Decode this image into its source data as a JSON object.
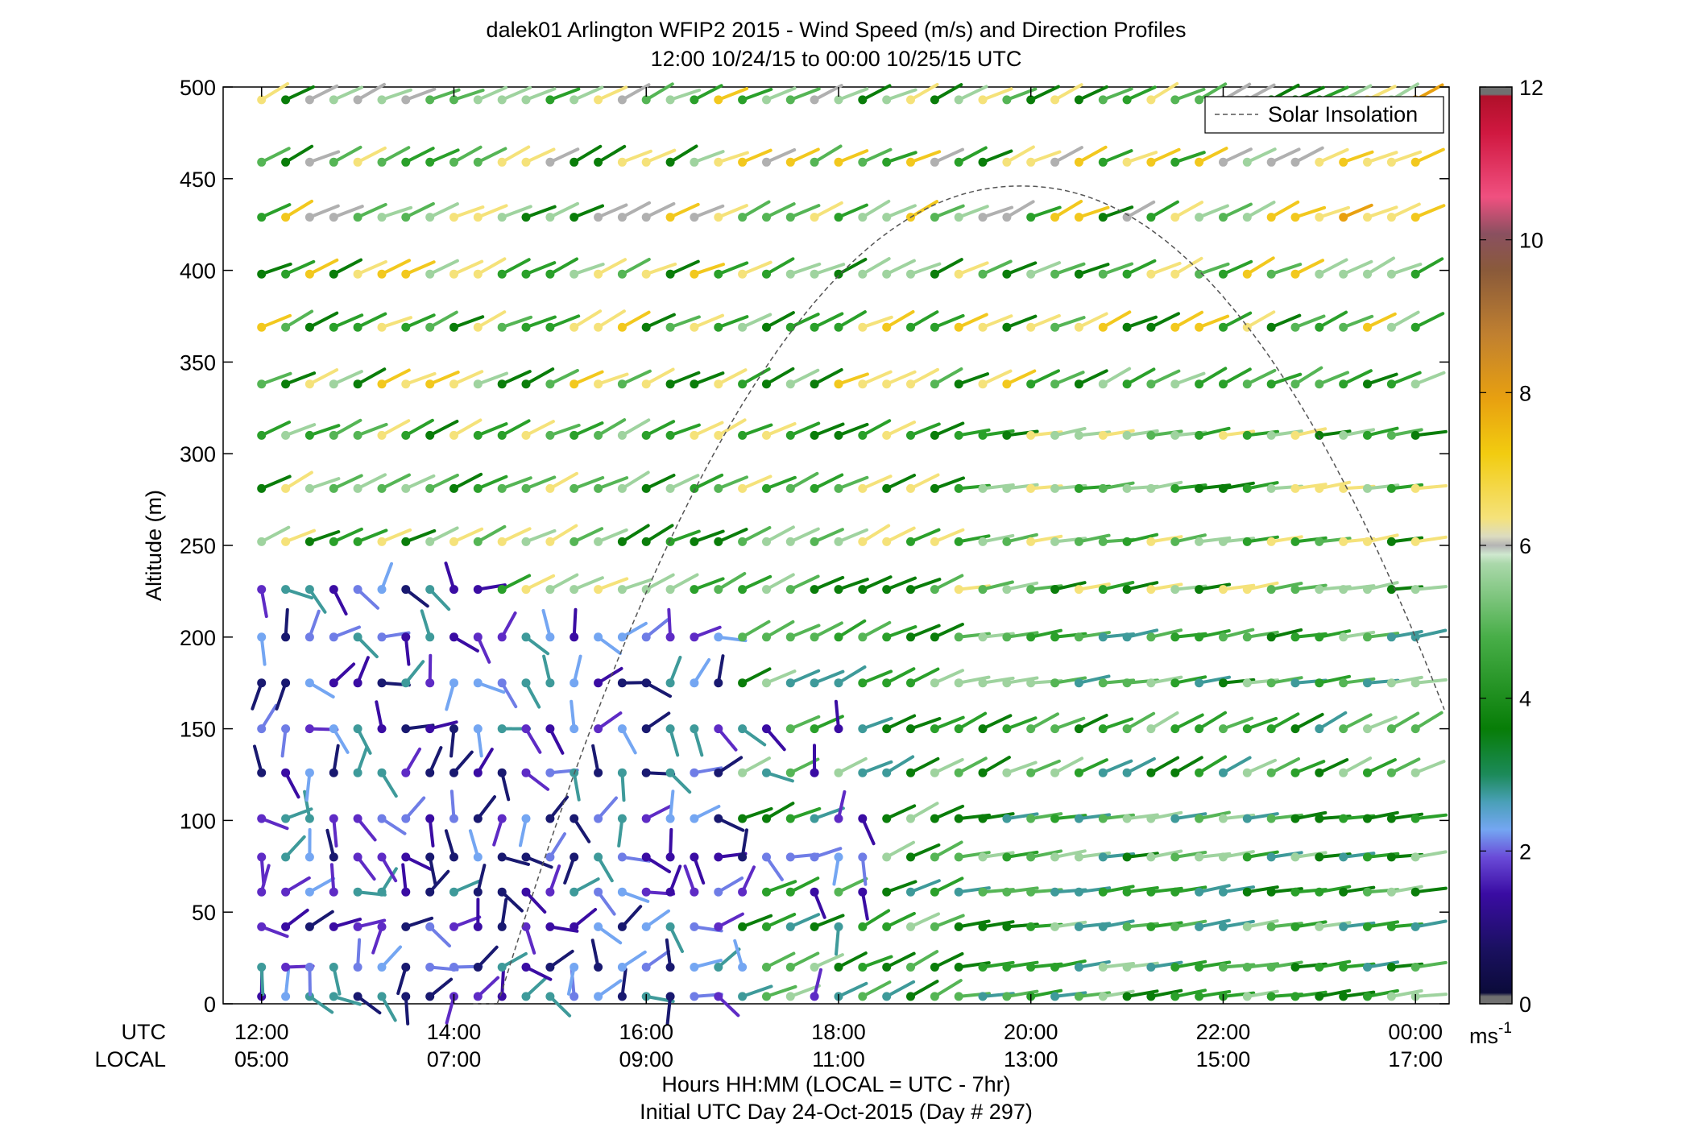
{
  "chart_data": {
    "type": "wind-barb-profile",
    "title": "dalek01 Arlington WFIP2 2015 - Wind Speed (m/s) and Direction Profiles",
    "subtitle": "12:00 10/24/15 to 00:00 10/25/15  UTC",
    "ylabel": "Altitude (m)",
    "xlabel": "Hours HH:MM  (LOCAL = UTC - 7hr)",
    "xlabel2": "Initial UTC Day 24-Oct-2015 (Day # 297)",
    "utc_row_label": "UTC",
    "local_row_label": "LOCAL",
    "x_ticks_utc": [
      "12:00",
      "14:00",
      "16:00",
      "18:00",
      "20:00",
      "22:00",
      "00:00"
    ],
    "x_ticks_local": [
      "05:00",
      "07:00",
      "09:00",
      "11:00",
      "13:00",
      "15:00",
      "17:00"
    ],
    "x_tick_hours": [
      12,
      14,
      16,
      18,
      20,
      22,
      24
    ],
    "xlim_hours": [
      11.6,
      24.35
    ],
    "y_ticks": [
      0,
      50,
      100,
      150,
      200,
      250,
      300,
      350,
      400,
      450,
      500
    ],
    "ylim": [
      0,
      500
    ],
    "altitudes": [
      4,
      20,
      42,
      61,
      80,
      101,
      126,
      150,
      175,
      200,
      226,
      252,
      281,
      310,
      338,
      369,
      398,
      429,
      459,
      493
    ],
    "time_start_hour": 12.0,
    "time_step_hours": 0.25,
    "time_count": 49,
    "legend": {
      "label": "Solar Insolation",
      "placement": "top-right"
    },
    "solar_curve": {
      "peak_hour": 19.9,
      "peak_alt": 446,
      "half_width_hours": 4.95
    },
    "colorbar": {
      "label": "ms",
      "label_sup": "-1",
      "ticks": [
        0,
        2,
        4,
        6,
        8,
        10,
        12
      ],
      "range": [
        0,
        12
      ]
    },
    "colors": {
      "navy": "#191970",
      "indigo": "#3a0ca3",
      "violet": "#5e2bc5",
      "periwinkle": "#6f7de6",
      "skyblue": "#74a6f2",
      "teal": "#3e9a9a",
      "darkgreen": "#0a7d0a",
      "green": "#2aa02a",
      "midgreen": "#55b555",
      "lightgreen": "#9fd39f",
      "gray": "#b0b0b0",
      "paleyellow": "#f5e27a",
      "yellow": "#f2c81e",
      "orange": "#e8a010"
    }
  }
}
